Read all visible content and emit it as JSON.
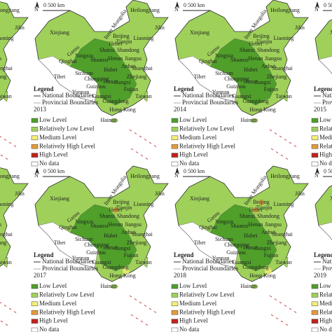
{
  "scale_bar": {
    "north": "N",
    "label": "0 500 km"
  },
  "legend": {
    "title": "Legend",
    "boundaries": [
      "National Boundaries",
      "Provincial Boundaries"
    ],
    "levels": [
      {
        "label": "Low Level",
        "color": "#4f9f2a"
      },
      {
        "label": "Relatively Low Level",
        "color": "#9fd15a"
      },
      {
        "label": "Medium Level",
        "color": "#f3ee78"
      },
      {
        "label": "Relatively High Level",
        "color": "#e59a3c"
      },
      {
        "label": "High Level",
        "color": "#c0231b"
      },
      {
        "label": "No data",
        "color": "#ffffff"
      }
    ]
  },
  "panels": [
    {
      "year": "2013"
    },
    {
      "year": "2014"
    },
    {
      "year": "2015"
    },
    {
      "year": "2017"
    },
    {
      "year": "2018"
    },
    {
      "year": "2019"
    }
  ],
  "provinces": [
    "Xinjiang",
    "Inner Mongolia",
    "Heilongjiang",
    "Jilin",
    "Liaoning",
    "Gansu",
    "Ningxia",
    "Beijing",
    "Tianjin",
    "Hebei",
    "Shanxi",
    "Shandong",
    "Qinghai",
    "Henan",
    "Shaanxi",
    "Jiangsu",
    "Anhui",
    "Tibet",
    "Sichuan",
    "Hubei",
    "Shanghai",
    "Chongqing",
    "Hunan",
    "Jiangxi",
    "Zhejiang",
    "Guizhou",
    "Fujian",
    "Yunnan",
    "Guangxi",
    "Guangdong",
    "Taiwan",
    "Hong Kong",
    "Hainan"
  ]
}
